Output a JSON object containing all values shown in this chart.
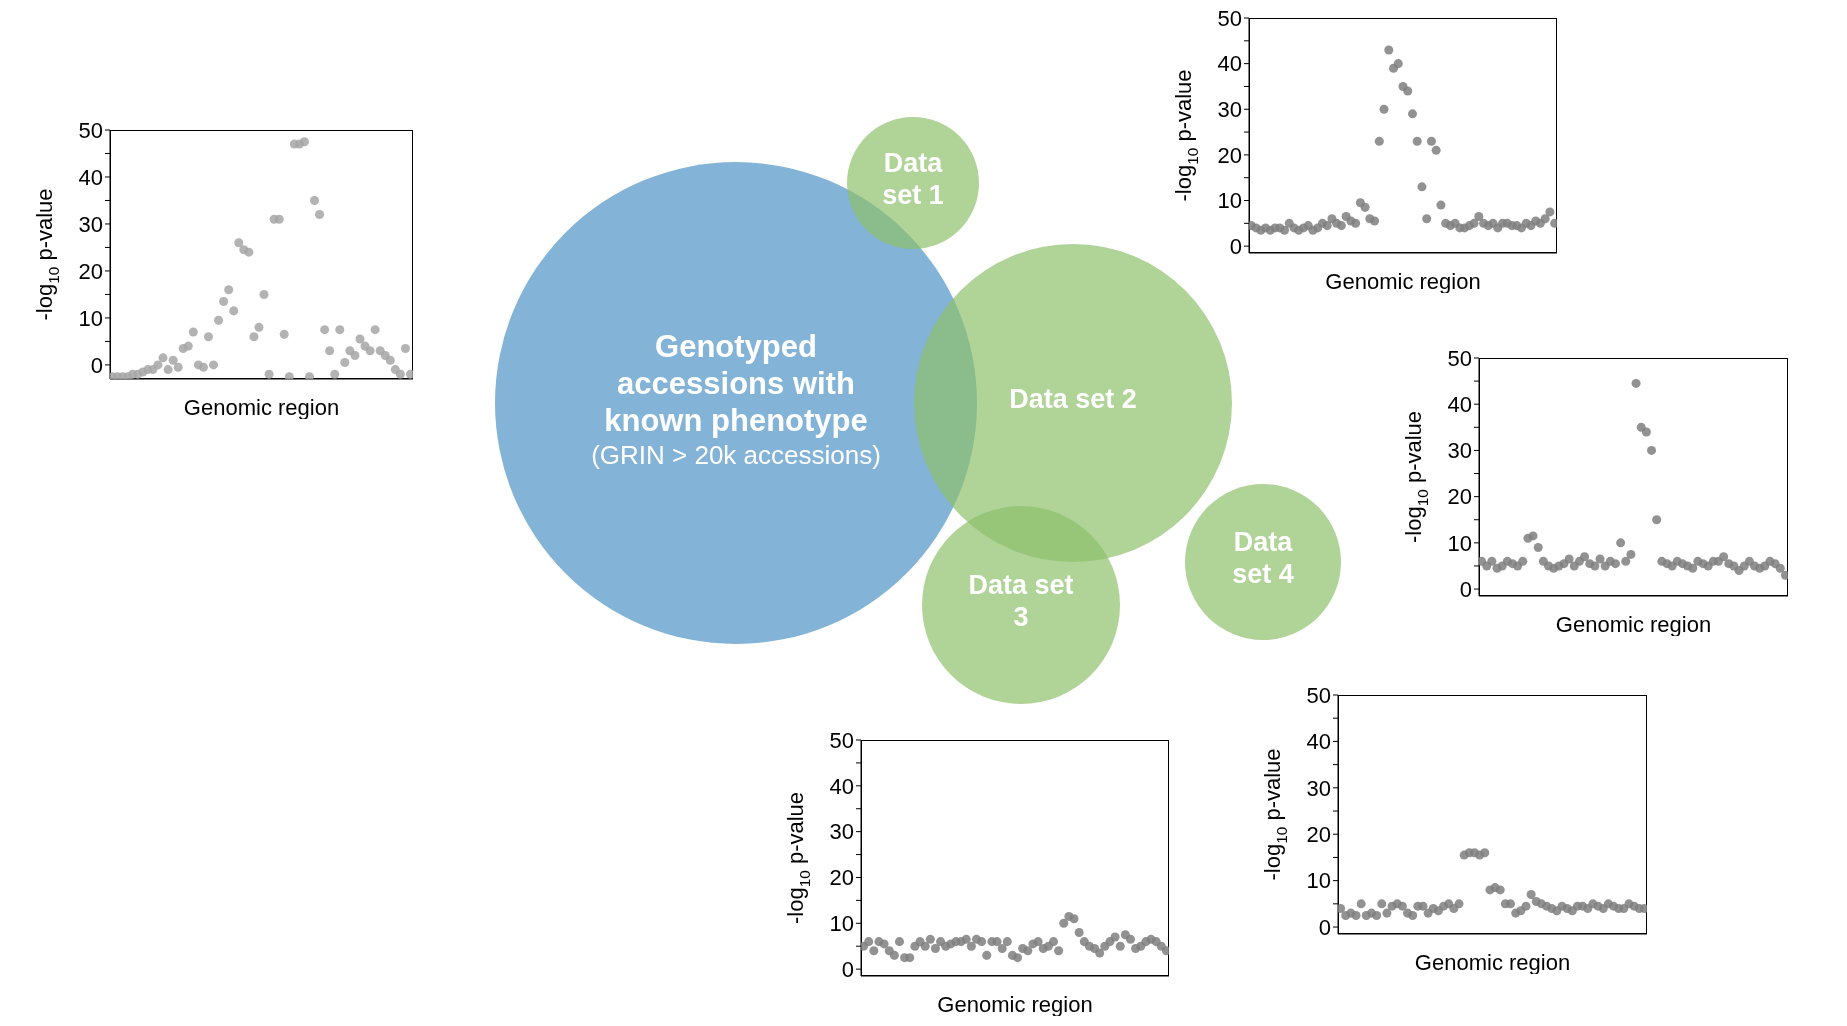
{
  "chart_data": [
    {
      "type": "scatter",
      "xlabel": "Genomic region",
      "ylabel": "-log$_{10}$p-value",
      "ylim": [
        -3,
        50
      ],
      "yticks": [
        0,
        {
          "value": 5,
          "label": null
        },
        10,
        {
          "value": 15,
          "label": null
        },
        20,
        {
          "value": 25,
          "label": null
        },
        30,
        {
          "value": 35,
          "label": null
        },
        40,
        {
          "value": 45,
          "label": null
        },
        50
      ],
      "marker": "circle",
      "categories": [
        null,
        null,
        null,
        null,
        null,
        null,
        null,
        null,
        null,
        null,
        null,
        null,
        null,
        null,
        null,
        null,
        null,
        null,
        null,
        null,
        null,
        null,
        null,
        null,
        null,
        null,
        null,
        null,
        null,
        null,
        null,
        null,
        null,
        null,
        null,
        null,
        null,
        null,
        null,
        null,
        null,
        null,
        null,
        null,
        null,
        null,
        null,
        null,
        null,
        null,
        null,
        null,
        null,
        null,
        null,
        null,
        null,
        null,
        null,
        null
      ],
      "series": [
        {
          "color": "#a6a6a6",
          "values": [
            -2.5,
            -2.5,
            -2.5,
            -2.5,
            -2,
            -2,
            -1.5,
            -1,
            -1,
            0,
            1.5,
            -1,
            1,
            -0.5,
            3.5,
            4,
            7,
            0,
            -0.5,
            6,
            0,
            9.5,
            13.5,
            16,
            11.5,
            26,
            24.5,
            24,
            6,
            8,
            15,
            -2,
            31,
            31,
            6.5,
            -2.5,
            47,
            47,
            47.5,
            -2.5,
            35,
            32,
            7.5,
            3,
            -2,
            7.5,
            0.5,
            3,
            2,
            5.5,
            4,
            3,
            7.5,
            3,
            2,
            1,
            -1,
            -2,
            3.5,
            -2
          ]
        }
      ]
    },
    {
      "type": "other",
      "annotations": [
        "Genotyped accessions with known phenotype",
        "(GRIN > 20k accessions)",
        "Data set 1",
        "Data set 2",
        "Data set 3",
        "Data set 4"
      ]
    },
    {
      "type": "scatter",
      "xlabel": "Genomic region",
      "ylabel": "-log$_{10}$p-value",
      "ylim": [
        -1.5,
        50
      ],
      "yticks": [
        0,
        {
          "value": 5,
          "label": null
        },
        10,
        {
          "value": 15,
          "label": null
        },
        20,
        {
          "value": 25,
          "label": null
        },
        30,
        {
          "value": 35,
          "label": null
        },
        40,
        {
          "value": 45,
          "label": null
        },
        50
      ],
      "marker": "circle",
      "categories": [
        null,
        null,
        null,
        null,
        null,
        null,
        null,
        null,
        null,
        null,
        null,
        null,
        null,
        null,
        null,
        null,
        null,
        null,
        null,
        null,
        null,
        null,
        null,
        null,
        null,
        null,
        null,
        null,
        null,
        null,
        null,
        null,
        null,
        null,
        null,
        null,
        null,
        null,
        null,
        null,
        null,
        null,
        null,
        null,
        null,
        null,
        null,
        null,
        null,
        null,
        null,
        null,
        null,
        null,
        null,
        null,
        null,
        null,
        null,
        null,
        null,
        null,
        null,
        null,
        null
      ],
      "series": [
        {
          "color": "#7f7f7f",
          "values": [
            4.5,
            4,
            3.5,
            4,
            3.5,
            4,
            4,
            3.5,
            5,
            4,
            3.5,
            4,
            4.5,
            3.5,
            4,
            5,
            4.5,
            6,
            5,
            4.5,
            6.5,
            5.5,
            5,
            9.5,
            8.5,
            6,
            5.5,
            23,
            30,
            43,
            39,
            40,
            35,
            34,
            29,
            23,
            13,
            6,
            23,
            21,
            9,
            5,
            4.5,
            5,
            4,
            4,
            4.5,
            5,
            6.5,
            5,
            4.5,
            5,
            4,
            5,
            5,
            4.5,
            4.5,
            4,
            5,
            4.5,
            5.5,
            5,
            6,
            7.5,
            5
          ]
        }
      ]
    },
    {
      "type": "scatter",
      "xlabel": "Genomic region",
      "ylabel": "-log$_{10}$p-value",
      "ylim": [
        -1.5,
        50
      ],
      "yticks": [
        0,
        {
          "value": 5,
          "label": null
        },
        10,
        {
          "value": 15,
          "label": null
        },
        20,
        {
          "value": 25,
          "label": null
        },
        30,
        {
          "value": 35,
          "label": null
        },
        40,
        {
          "value": 45,
          "label": null
        },
        50
      ],
      "marker": "circle",
      "categories": [
        null,
        null,
        null,
        null,
        null,
        null,
        null,
        null,
        null,
        null,
        null,
        null,
        null,
        null,
        null,
        null,
        null,
        null,
        null,
        null,
        null,
        null,
        null,
        null,
        null,
        null,
        null,
        null,
        null,
        null,
        null,
        null,
        null,
        null,
        null,
        null,
        null,
        null,
        null,
        null,
        null,
        null,
        null,
        null,
        null,
        null,
        null,
        null,
        null,
        null,
        null,
        null,
        null,
        null,
        null,
        null,
        null,
        null,
        null,
        null
      ],
      "series": [
        {
          "color": "#7f7f7f",
          "values": [
            6,
            5,
            6,
            4.5,
            5,
            6,
            5.5,
            5,
            6,
            11,
            11.5,
            9,
            6,
            5,
            4.5,
            5,
            5.5,
            6.5,
            5,
            6,
            7,
            5.5,
            5,
            6.5,
            5,
            6,
            5.5,
            10,
            6,
            7.5,
            44.5,
            35,
            34,
            30,
            15,
            6,
            5.5,
            5,
            6,
            5.5,
            5,
            4.5,
            6,
            5.5,
            5,
            6,
            6,
            7,
            5.5,
            5,
            4,
            5,
            6,
            5,
            4.5,
            5,
            6,
            5.5,
            4.5,
            3
          ]
        }
      ]
    },
    {
      "type": "scatter",
      "xlabel": "Genomic region",
      "ylabel": "-log$_{10}$p-value",
      "ylim": [
        -1.5,
        50
      ],
      "yticks": [
        0,
        {
          "value": 5,
          "label": null
        },
        10,
        {
          "value": 15,
          "label": null
        },
        20,
        {
          "value": 25,
          "label": null
        },
        30,
        {
          "value": 35,
          "label": null
        },
        40,
        {
          "value": 45,
          "label": null
        },
        50
      ],
      "marker": "circle",
      "categories": [
        null,
        null,
        null,
        null,
        null,
        null,
        null,
        null,
        null,
        null,
        null,
        null,
        null,
        null,
        null,
        null,
        null,
        null,
        null,
        null,
        null,
        null,
        null,
        null,
        null,
        null,
        null,
        null,
        null,
        null,
        null,
        null,
        null,
        null,
        null,
        null,
        null,
        null,
        null,
        null,
        null,
        null,
        null,
        null,
        null,
        null,
        null,
        null,
        null,
        null,
        null,
        null,
        null,
        null,
        null,
        null,
        null,
        null,
        null,
        null
      ],
      "series": [
        {
          "color": "#7f7f7f",
          "values": [
            5,
            6,
            4,
            6,
            5.5,
            4,
            3,
            6,
            2.5,
            2.5,
            5,
            6,
            5,
            6.5,
            4.5,
            6,
            5,
            5.5,
            6,
            6,
            6.5,
            5,
            6.5,
            6,
            3,
            6,
            6,
            4.5,
            6,
            3,
            2.5,
            4.5,
            4,
            5.5,
            6,
            4.5,
            5,
            6,
            4,
            10,
            11.5,
            11,
            8,
            6,
            5,
            4.5,
            3.5,
            5,
            6,
            7,
            5,
            7.5,
            6.5,
            4.5,
            5,
            6,
            6.5,
            6,
            5,
            4
          ]
        }
      ]
    },
    {
      "type": "scatter",
      "xlabel": "Genomic region",
      "ylabel": "-log$_{10}$p-value",
      "ylim": [
        -1.5,
        50
      ],
      "yticks": [
        0,
        {
          "value": 5,
          "label": null
        },
        10,
        {
          "value": 15,
          "label": null
        },
        20,
        {
          "value": 25,
          "label": null
        },
        30,
        {
          "value": 35,
          "label": null
        },
        40,
        {
          "value": 45,
          "label": null
        },
        50
      ],
      "marker": "circle",
      "categories": [
        null,
        null,
        null,
        null,
        null,
        null,
        null,
        null,
        null,
        null,
        null,
        null,
        null,
        null,
        null,
        null,
        null,
        null,
        null,
        null,
        null,
        null,
        null,
        null,
        null,
        null,
        null,
        null,
        null,
        null,
        null,
        null,
        null,
        null,
        null,
        null,
        null,
        null,
        null,
        null,
        null,
        null,
        null,
        null,
        null,
        null,
        null,
        null,
        null,
        null,
        null,
        null,
        null,
        null,
        null,
        null,
        null,
        null,
        null,
        null
      ],
      "series": [
        {
          "color": "#7f7f7f",
          "values": [
            4,
            2.5,
            3,
            2.5,
            5,
            2.5,
            3,
            2.5,
            5,
            3,
            4.5,
            5,
            4.5,
            3,
            2.5,
            4.5,
            4.5,
            3,
            4,
            3.5,
            4.5,
            5,
            4,
            5,
            15.5,
            16,
            16,
            15.5,
            16,
            8,
            8.5,
            8,
            5,
            5,
            3,
            3.5,
            4.5,
            7,
            5.5,
            5,
            4.5,
            4,
            3.5,
            4.5,
            4,
            3.5,
            4.5,
            4.5,
            4,
            5,
            4.5,
            4,
            5,
            4.5,
            4,
            4,
            5,
            4.5,
            4,
            4
          ]
        }
      ]
    }
  ]
}
